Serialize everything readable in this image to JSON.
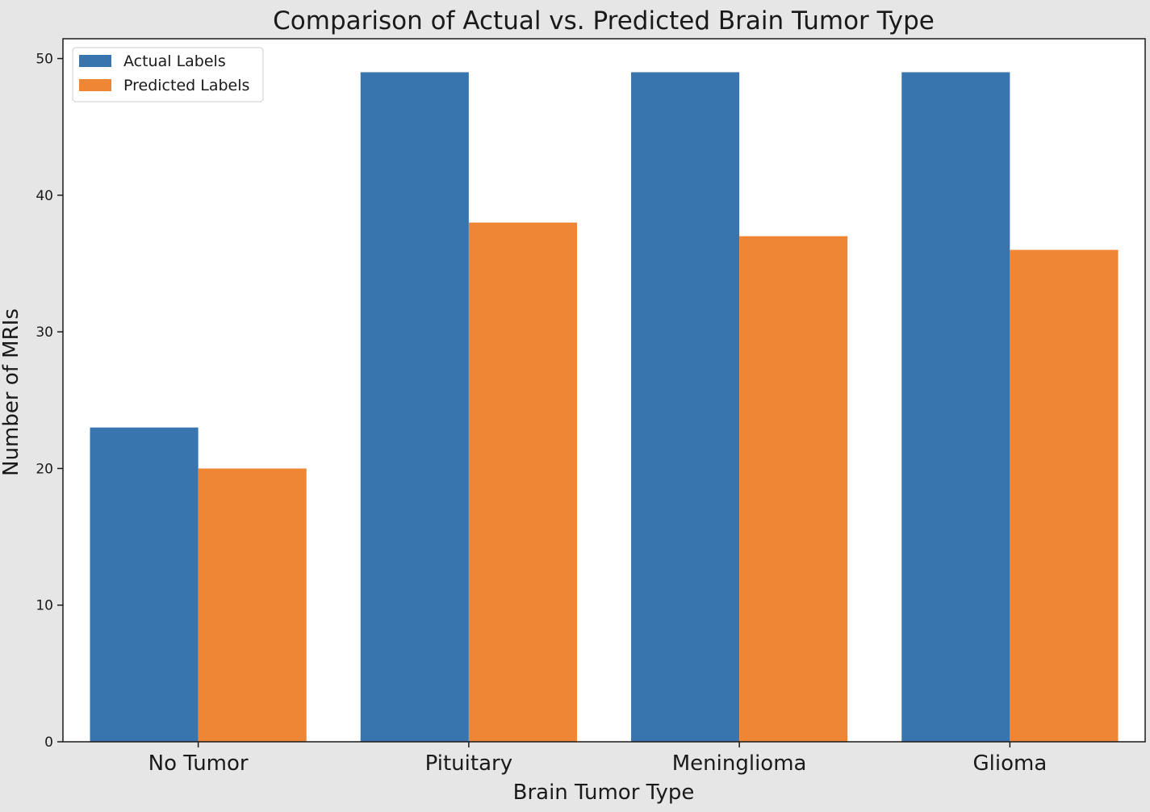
{
  "chart_data": {
    "type": "bar",
    "title": "Comparison of Actual vs. Predicted Brain Tumor Type",
    "xlabel": "Brain Tumor Type",
    "ylabel": "Number of MRIs",
    "categories": [
      "No Tumor",
      "Pituitary",
      "Meninglioma",
      "Glioma"
    ],
    "series": [
      {
        "name": "Actual Labels",
        "color": "#3875ae",
        "values": [
          23,
          49,
          49,
          49
        ]
      },
      {
        "name": "Predicted Labels",
        "color": "#ef8636",
        "values": [
          20,
          38,
          37,
          36
        ]
      }
    ],
    "ylim": [
      0,
      51.45
    ],
    "yticks": [
      0,
      10,
      20,
      30,
      40,
      50
    ],
    "grid": false,
    "legend_position": "top-left"
  }
}
